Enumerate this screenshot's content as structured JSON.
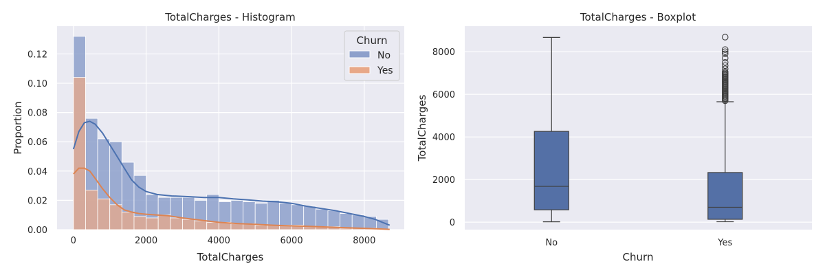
{
  "chart_data": [
    {
      "type": "histogram",
      "title": "TotalCharges - Histogram",
      "xlabel": "TotalCharges",
      "ylabel": "Proportion",
      "xlim": [
        -450,
        9100
      ],
      "ylim": [
        0,
        0.139
      ],
      "xticks": [
        0,
        2000,
        4000,
        6000,
        8000
      ],
      "yticks": [
        0.0,
        0.02,
        0.04,
        0.06,
        0.08,
        0.1,
        0.12
      ],
      "ytick_labels": [
        "0.00",
        "0.02",
        "0.04",
        "0.06",
        "0.08",
        "0.10",
        "0.12"
      ],
      "grid": true,
      "legend": {
        "title": "Churn",
        "position": "top-right",
        "entries": [
          "No",
          "Yes"
        ]
      },
      "bin_edges": [
        0,
        333,
        667,
        1000,
        1333,
        1667,
        2000,
        2333,
        2667,
        3000,
        3333,
        3667,
        4000,
        4333,
        4667,
        5000,
        5333,
        5667,
        6000,
        6333,
        6667,
        7000,
        7333,
        7667,
        8000,
        8333,
        8667
      ],
      "series": [
        {
          "name": "No",
          "color": "#8da0cb",
          "line_color": "#4c72b0",
          "values": [
            0.132,
            0.076,
            0.062,
            0.06,
            0.046,
            0.037,
            0.024,
            0.022,
            0.022,
            0.022,
            0.02,
            0.024,
            0.019,
            0.02,
            0.019,
            0.018,
            0.02,
            0.018,
            0.017,
            0.016,
            0.014,
            0.013,
            0.011,
            0.01,
            0.009,
            0.007
          ],
          "kde": [
            [
              0,
              0.055
            ],
            [
              150,
              0.067
            ],
            [
              300,
              0.073
            ],
            [
              450,
              0.074
            ],
            [
              600,
              0.072
            ],
            [
              800,
              0.066
            ],
            [
              1000,
              0.058
            ],
            [
              1200,
              0.05
            ],
            [
              1400,
              0.042
            ],
            [
              1600,
              0.034
            ],
            [
              1800,
              0.029
            ],
            [
              2000,
              0.026
            ],
            [
              2300,
              0.024
            ],
            [
              2700,
              0.023
            ],
            [
              3200,
              0.0225
            ],
            [
              3600,
              0.022
            ],
            [
              4000,
              0.022
            ],
            [
              4400,
              0.021
            ],
            [
              4800,
              0.0203
            ],
            [
              5200,
              0.0195
            ],
            [
              5600,
              0.019
            ],
            [
              6000,
              0.018
            ],
            [
              6400,
              0.016
            ],
            [
              6800,
              0.0145
            ],
            [
              7200,
              0.013
            ],
            [
              7600,
              0.011
            ],
            [
              8000,
              0.009
            ],
            [
              8300,
              0.007
            ],
            [
              8500,
              0.005
            ],
            [
              8700,
              0.003
            ]
          ]
        },
        {
          "name": "Yes",
          "color": "#e8a888",
          "line_color": "#dd8452",
          "values": [
            0.104,
            0.027,
            0.021,
            0.017,
            0.012,
            0.009,
            0.008,
            0.01,
            0.008,
            0.007,
            0.006,
            0.005,
            0.005,
            0.004,
            0.004,
            0.003,
            0.003,
            0.003,
            0.003,
            0.002,
            0.002,
            0.002,
            0.001,
            0.001,
            0.001,
            0.0005
          ],
          "kde": [
            [
              0,
              0.038
            ],
            [
              150,
              0.042
            ],
            [
              300,
              0.042
            ],
            [
              450,
              0.04
            ],
            [
              600,
              0.035
            ],
            [
              800,
              0.028
            ],
            [
              1000,
              0.022
            ],
            [
              1200,
              0.017
            ],
            [
              1400,
              0.0135
            ],
            [
              1600,
              0.012
            ],
            [
              1800,
              0.011
            ],
            [
              2000,
              0.0105
            ],
            [
              2300,
              0.01
            ],
            [
              2600,
              0.0095
            ],
            [
              3000,
              0.008
            ],
            [
              3500,
              0.0065
            ],
            [
              4000,
              0.005
            ],
            [
              4500,
              0.0042
            ],
            [
              5000,
              0.0036
            ],
            [
              5500,
              0.003
            ],
            [
              6000,
              0.0026
            ],
            [
              6500,
              0.0022
            ],
            [
              7000,
              0.0018
            ],
            [
              7500,
              0.0013
            ],
            [
              8000,
              0.0009
            ],
            [
              8400,
              0.0005
            ],
            [
              8700,
              0.0002
            ]
          ]
        }
      ]
    },
    {
      "type": "boxplot",
      "title": "TotalCharges - Boxplot",
      "xlabel": "Churn",
      "ylabel": "TotalCharges",
      "categories": [
        "No",
        "Yes"
      ],
      "ylim": [
        -350,
        9200
      ],
      "yticks": [
        0,
        2000,
        4000,
        6000,
        8000
      ],
      "grid": true,
      "box_color": "#5470a6",
      "boxes": [
        {
          "name": "No",
          "whisker_low": 18,
          "q1": 580,
          "median": 1680,
          "q3": 4260,
          "whisker_high": 8672,
          "outliers": []
        },
        {
          "name": "Yes",
          "whisker_low": 19,
          "q1": 135,
          "median": 700,
          "q3": 2330,
          "whisker_high": 5650,
          "outliers": [
            5700,
            5750,
            5800,
            5850,
            5900,
            5950,
            6000,
            6050,
            6100,
            6150,
            6200,
            6250,
            6300,
            6350,
            6400,
            6450,
            6500,
            6550,
            6600,
            6650,
            6700,
            6750,
            6800,
            6850,
            6900,
            6950,
            7000,
            7050,
            7200,
            7350,
            7500,
            7700,
            7900,
            8000,
            8100,
            8684
          ]
        }
      ]
    }
  ]
}
